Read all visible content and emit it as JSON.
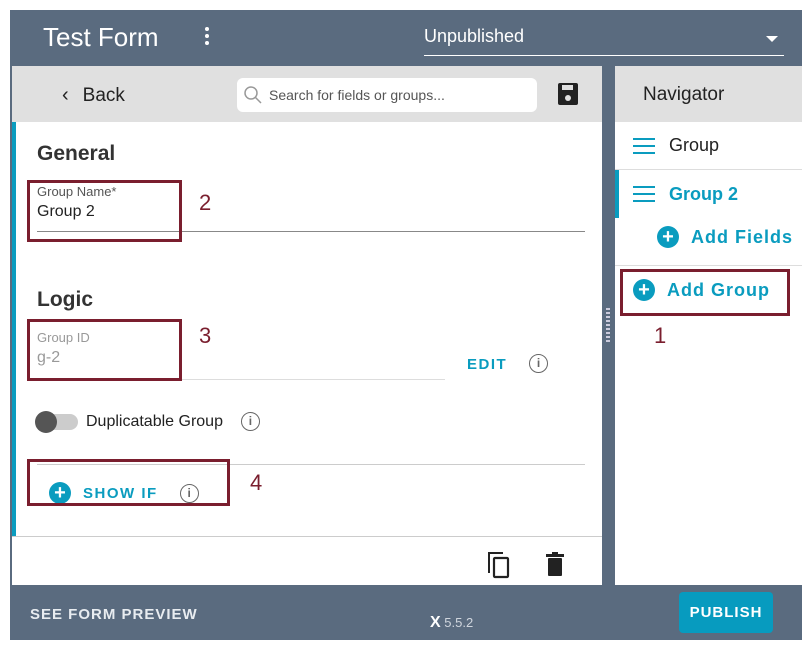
{
  "header": {
    "title": "Test Form",
    "status": "Unpublished"
  },
  "toolbar": {
    "back": "Back",
    "search_placeholder": "Search for fields or groups..."
  },
  "general": {
    "heading": "General",
    "group_name_label": "Group Name*",
    "group_name_value": "Group 2"
  },
  "logic": {
    "heading": "Logic",
    "group_id_label": "Group ID",
    "group_id_value": "g-2",
    "edit": "EDIT",
    "duplicatable": "Duplicatable Group",
    "duplicatable_on": false,
    "show_if": "SHOW IF"
  },
  "navigator": {
    "title": "Navigator",
    "items": [
      {
        "label": "Group"
      },
      {
        "label": "Group 2"
      }
    ],
    "add_fields": "Add Fields",
    "add_group": "Add Group"
  },
  "annotations": [
    "1",
    "2",
    "3",
    "4"
  ],
  "footer": {
    "preview": "SEE FORM PREVIEW",
    "version": "5.5.2",
    "publish": "PUBLISH"
  },
  "colors": {
    "accent": "#0a9cbf",
    "frame": "#5a6b7f",
    "annotation": "#7a1e2e"
  }
}
